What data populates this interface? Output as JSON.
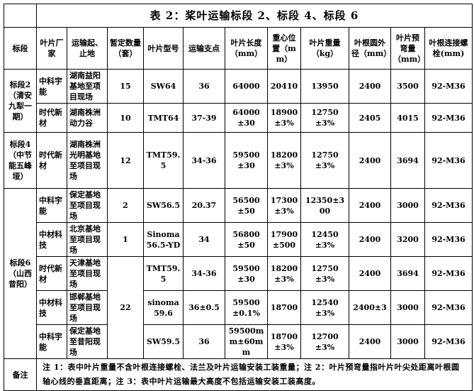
{
  "title": "表 2：桨叶运输标段 2、标段 4、标段 6",
  "header": [
    "标段",
    "叶片厂家",
    "运输起、止地",
    "暂定数量（套）",
    "叶片型号",
    "运输支点",
    "叶片长度（mm）",
    "重心位置（mm）",
    "叶片重量（kg）",
    "叶根圆外径（mm）",
    "叶片预弯量（mm）",
    "叶根连接螺栓(mm)"
  ],
  "rows": [
    [
      "标段2（清安九犁一期）",
      "中科宇能",
      "湖南益阳基地至项目现场",
      "15",
      "SW64",
      "36",
      "64000",
      "20410",
      "13950",
      "2400",
      "3500",
      "92-M36"
    ],
    [
      "时代新材",
      "湖南株洲动力谷",
      "10",
      "TMT64",
      "37-39",
      "64000±30",
      "18900±3%",
      "12750±3%",
      "2405",
      "4015",
      "92-M36"
    ],
    [
      "标段4（中节能五峰垭）",
      "时代新材",
      "湖南株洲光明基地至项目现场",
      "12",
      "TMT59.5",
      "34-36",
      "59500±30",
      "18200±3%",
      "12750±3%",
      "2400",
      "3694",
      "92-M36"
    ],
    [
      "标段6（山西昔阳）",
      "中科宇能",
      "保定基地至项目现场",
      "2",
      "SW56.5",
      "20.37",
      "56500±50",
      "17300±3%",
      "12350±300",
      "2400",
      "3000",
      "92-M36"
    ],
    [
      "中材科技",
      "北京基地至项目现场",
      "1",
      "Sinoma56.5-YD",
      "34",
      "56800±50",
      "17900±500",
      "12450±3%",
      "2400",
      "3200",
      "92-M36"
    ],
    [
      "时代新材",
      "天津基地至项目现场",
      "22",
      "TMT59.5",
      "34-36",
      "59500±30",
      "18200±3%",
      "12750±3%",
      "2400",
      "3694",
      "92-M36"
    ],
    [
      "中材科技",
      "邯郸基地至项目现场",
      "sinoma59.6",
      "36±0.5",
      "59500±0.1%",
      "18700",
      "12540±3%",
      "2400±3",
      "3000",
      "92-M36"
    ],
    [
      "中科宇能",
      "保定基地至昔阳现场",
      "SW59.5",
      "36",
      "59500mm±60mm",
      "18700±3%",
      "12700±3%",
      "2400",
      "3000",
      "92-M36"
    ]
  ],
  "note_label": "备注",
  "note_text": "注 1：表中叶片重量不含叶根连接螺栓、法兰及叶片运输安装工装重量；注 2：叶片预弯量指叶片叶尖处距离叶根圆轴心线的垂直距离；注 3：表中叶片运输最大高度不包括运输安装工装高度。"
}
